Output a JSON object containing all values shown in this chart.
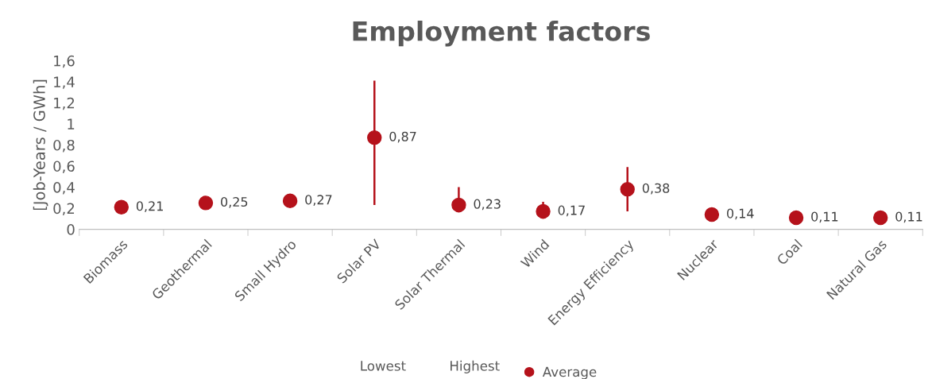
{
  "chart_data": {
    "type": "scatter",
    "title": "Employment factors",
    "ylabel": "[Job-Years / GWh]",
    "categories": [
      "Biomass",
      "Geothermal",
      "Small Hydro",
      "Solar PV",
      "Solar Thermal",
      "Wind",
      "Energy Efficiency",
      "Nuclear",
      "Coal",
      "Natural Gas"
    ],
    "series": [
      {
        "name": "Average",
        "color": "#b5121b",
        "values": [
          0.21,
          0.25,
          0.27,
          0.87,
          0.23,
          0.17,
          0.38,
          0.14,
          0.11,
          0.11
        ],
        "errors": [
          null,
          null,
          null,
          [
            0.23,
            1.41
          ],
          [
            0.16,
            0.4
          ],
          [
            0.1,
            0.26
          ],
          [
            0.17,
            0.59
          ],
          null,
          null,
          null
        ],
        "value_labels": [
          "0,21",
          "0,25",
          "0,27",
          "0,87",
          "0,23",
          "0,17",
          "0,38",
          "0,14",
          "0,11",
          "0,11"
        ]
      }
    ],
    "annotations": [
      "Lowest",
      "Highest"
    ],
    "ylim": [
      0,
      1.6
    ],
    "yticks": [
      0,
      {
        "value": 0.2,
        "label": "0,2"
      },
      {
        "value": 0.4,
        "label": "0,4"
      },
      {
        "value": 0.6,
        "label": "0,6"
      },
      {
        "value": 0.8,
        "label": "0,8"
      },
      1,
      {
        "value": 1.2,
        "label": "1,2"
      },
      {
        "value": 1.4,
        "label": "1,4"
      },
      {
        "value": 1.6,
        "label": "1,6"
      }
    ],
    "marker": "circle",
    "grid": false,
    "legend": "bottom"
  }
}
